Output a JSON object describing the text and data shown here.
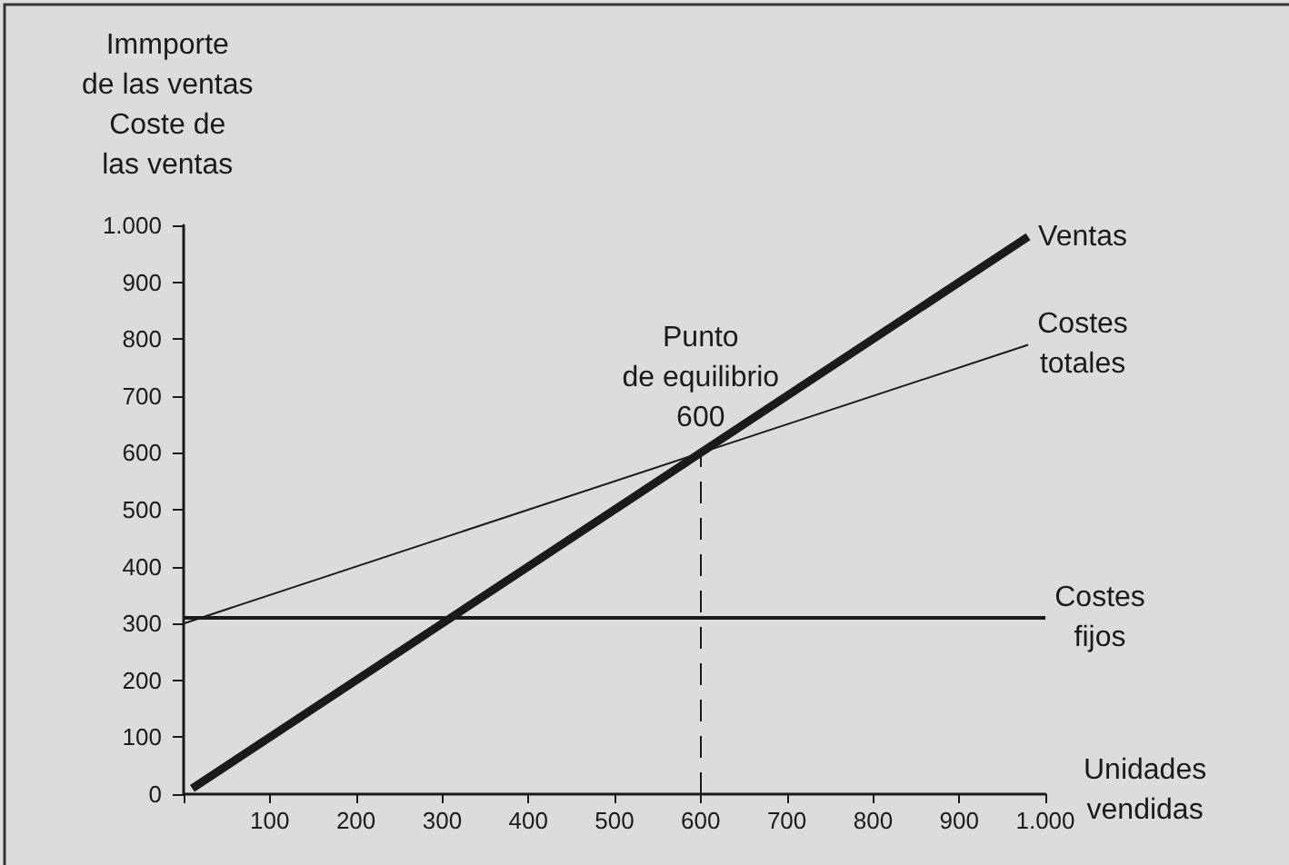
{
  "chart_data": {
    "type": "line",
    "xlabel": "Unidades vendidas",
    "ylabel": "Immporte de las ventas Coste de las ventas",
    "series": [
      {
        "name": "Ventas",
        "color": "#1a1a1a",
        "x": [
          10,
          980
        ],
        "values": [
          10,
          980
        ]
      },
      {
        "name": "Costes totales",
        "color": "#1a1a1a",
        "x": [
          0,
          980
        ],
        "values": [
          300,
          790
        ]
      },
      {
        "name": "Costes fijos",
        "color": "#1a1a1a",
        "x": [
          0,
          1000
        ],
        "values": [
          310,
          310
        ]
      }
    ],
    "xlim": [
      0,
      1000
    ],
    "xticks": [
      {
        "value": 0,
        "label": null
      },
      100,
      200,
      300,
      400,
      500,
      600,
      700,
      800,
      900,
      {
        "value": 1000,
        "label": "1.000"
      }
    ],
    "ylim": [
      0,
      1000
    ],
    "yticks": [
      0,
      100,
      200,
      300,
      400,
      500,
      600,
      700,
      800,
      900,
      {
        "value": 1000,
        "label": "1.000"
      }
    ],
    "ref_lines": [
      {
        "axis": "x",
        "value": 600,
        "label": "Punto de equilibrio 600",
        "line_style": "dashed"
      }
    ],
    "grid": false,
    "legend": false,
    "marker": "none"
  }
}
